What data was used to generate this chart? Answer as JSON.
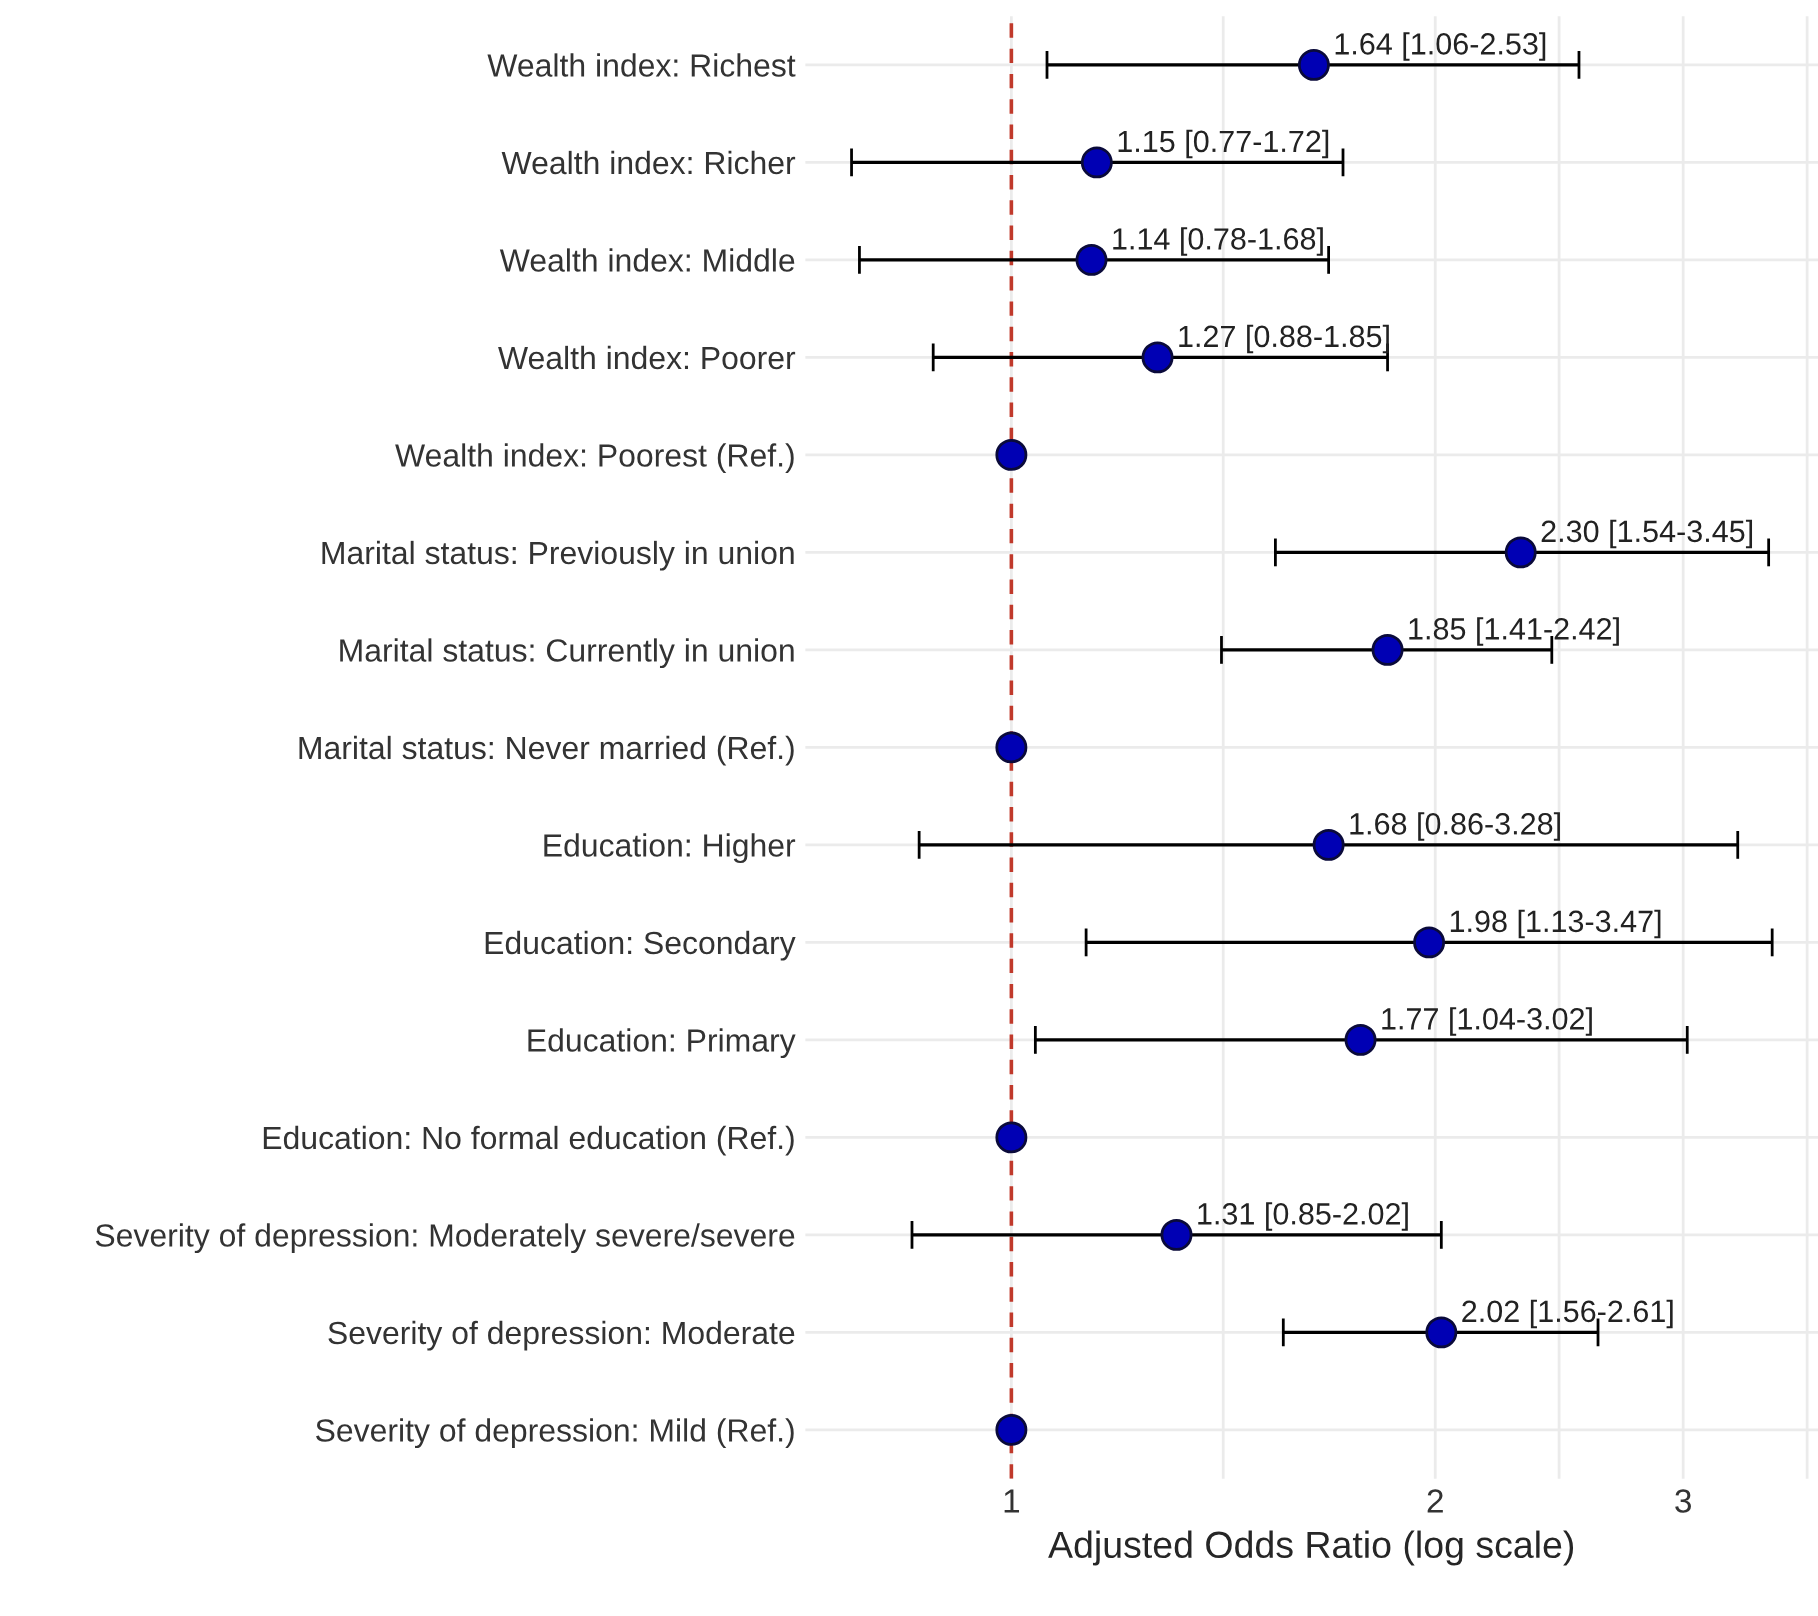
{
  "chart_data": {
    "type": "scatter",
    "orientation": "horizontal",
    "xlabel": "Adjusted Odds Ratio (log scale)",
    "log": "x",
    "categories": [
      "Wealth index: Richest",
      "Wealth index: Richer",
      "Wealth index: Middle",
      "Wealth index: Poorer",
      "Wealth index: Poorest (Ref.)",
      "Marital status: Previously in union",
      "Marital status: Currently in union",
      "Marital status: Never married (Ref.)",
      "Education: Higher",
      "Education: Secondary",
      "Education: Primary",
      "Education: No formal education (Ref.)",
      "Severity of depression: Moderately severe/severe",
      "Severity of depression: Moderate",
      "Severity of depression: Mild (Ref.)"
    ],
    "values": [
      1.64,
      1.15,
      1.14,
      1.27,
      1,
      2.3,
      1.85,
      1,
      1.68,
      1.98,
      1.77,
      1,
      1.31,
      2.02,
      1
    ],
    "errors": [
      [
        1.06,
        2.53
      ],
      [
        0.77,
        1.72
      ],
      [
        0.78,
        1.68
      ],
      [
        0.88,
        1.85
      ],
      null,
      [
        1.54,
        3.45
      ],
      [
        1.41,
        2.42
      ],
      null,
      [
        0.86,
        3.28
      ],
      [
        1.13,
        3.47
      ],
      [
        1.04,
        3.02
      ],
      null,
      [
        0.85,
        2.02
      ],
      [
        1.56,
        2.61
      ],
      null
    ],
    "value_labels": [
      "1.64 [1.06-2.53]",
      "1.15 [0.77-1.72]",
      "1.14 [0.78-1.68]",
      "1.27 [0.88-1.85]",
      null,
      "2.30 [1.54-3.45]",
      "1.85 [1.41-2.42]",
      null,
      "1.68 [0.86-3.28]",
      "1.98 [1.13-3.47]",
      "1.77 [1.04-3.02]",
      null,
      "1.31 [0.85-2.02]",
      "2.02 [1.56-2.61]",
      null
    ],
    "color": "#0000b4",
    "marker": "circle",
    "xlim": [
      0.714,
      3.74
    ],
    "xticks": [
      1,
      {
        "value": 1.414,
        "label": null
      },
      2,
      {
        "value": 2.449,
        "label": null
      },
      3,
      {
        "value": 3.674,
        "label": null
      }
    ],
    "grid": true,
    "ref_lines": [
      {
        "axis": "x",
        "value": 1,
        "label": null,
        "color": "#c0392b",
        "line_style": "dashed"
      }
    ]
  }
}
